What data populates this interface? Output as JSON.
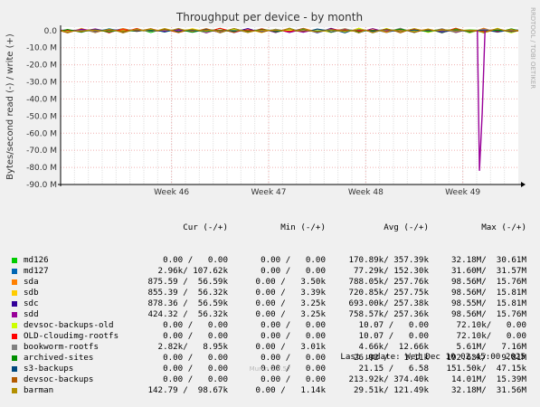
{
  "chart_data": {
    "type": "line",
    "title": "Throughput per device - by month",
    "ylabel": "Bytes/second read (-) / write (+)",
    "side_label": "RRDTOOL / TOBI OETIKER",
    "ylim": [
      -90000000,
      2000000
    ],
    "y_ticks": [
      "0.0",
      "-10.0 M",
      "-20.0 M",
      "-30.0 M",
      "-40.0 M",
      "-50.0 M",
      "-60.0 M",
      "-70.0 M",
      "-80.0 M",
      "-90.0 M"
    ],
    "y_tick_values": [
      0,
      -10000000,
      -20000000,
      -30000000,
      -40000000,
      -50000000,
      -60000000,
      -70000000,
      -80000000,
      -90000000
    ],
    "x_ticks": [
      "Week 46",
      "Week 47",
      "Week 48",
      "Week 49"
    ],
    "x_tick_days": [
      8,
      15,
      22,
      29
    ],
    "x_range_days": [
      0,
      33
    ],
    "grid": true,
    "spike": {
      "day": 30.2,
      "min": -82000000,
      "recover_day": 30.4,
      "recover_value": -48000000
    },
    "series_colors": [
      "#00cc00",
      "#0066b3",
      "#ff8000",
      "#ffcc00",
      "#330099",
      "#990099",
      "#ccff00",
      "#ff0000",
      "#808080",
      "#008f00",
      "#00487d",
      "#b35a00",
      "#b38f00"
    ]
  },
  "legend": {
    "headers": {
      "cur": "Cur (-/+)",
      "min": "Min (-/+)",
      "avg": "Avg (-/+)",
      "max": "Max (-/+)"
    },
    "rows": [
      {
        "name": "md126",
        "color": "#00cc00",
        "cur": "0.00 /   0.00",
        "min": "0.00 /   0.00",
        "avg": "170.89k/ 357.39k",
        "max": "32.18M/  30.61M"
      },
      {
        "name": "md127",
        "color": "#0066b3",
        "cur": "2.96k/ 107.62k",
        "min": "0.00 /   0.00",
        "avg": "77.29k/ 152.30k",
        "max": "31.60M/  31.57M"
      },
      {
        "name": "sda",
        "color": "#ff8000",
        "cur": "875.59 /  56.59k",
        "min": "0.00 /   3.50k",
        "avg": "788.05k/ 257.76k",
        "max": "98.56M/  15.76M"
      },
      {
        "name": "sdb",
        "color": "#ffcc00",
        "cur": "855.39 /  56.32k",
        "min": "0.00 /   3.39k",
        "avg": "720.85k/ 257.75k",
        "max": "98.56M/  15.81M"
      },
      {
        "name": "sdc",
        "color": "#330099",
        "cur": "878.36 /  56.59k",
        "min": "0.00 /   3.25k",
        "avg": "693.00k/ 257.38k",
        "max": "98.55M/  15.81M"
      },
      {
        "name": "sdd",
        "color": "#990099",
        "cur": "424.32 /  56.32k",
        "min": "0.00 /   3.25k",
        "avg": "758.57k/ 257.36k",
        "max": "98.56M/  15.76M"
      },
      {
        "name": "devsoc-backups-old",
        "color": "#ccff00",
        "cur": "0.00 /   0.00",
        "min": "0.00 /   0.00",
        "avg": "10.07 /   0.00",
        "max": "72.10k/   0.00"
      },
      {
        "name": "OLD-cloudimg-rootfs",
        "color": "#ff0000",
        "cur": "0.00 /   0.00",
        "min": "0.00 /   0.00",
        "avg": "10.07 /   0.00",
        "max": "72.10k/   0.00"
      },
      {
        "name": "bookworm-rootfs",
        "color": "#808080",
        "cur": "2.82k/   8.95k",
        "min": "0.00 /   3.01k",
        "avg": "4.66k/  12.66k",
        "max": "5.61M/   7.16M"
      },
      {
        "name": "archived-sites",
        "color": "#008f00",
        "cur": "0.00 /   0.00",
        "min": "0.00 /   0.00",
        "avg": "26.92 /   1.11k",
        "max": "192.63k/   9.81M"
      },
      {
        "name": "s3-backups",
        "color": "#00487d",
        "cur": "0.00 /   0.00",
        "min": "0.00 /   0.00",
        "avg": "21.15 /   6.58",
        "max": "151.50k/  47.15k"
      },
      {
        "name": "devsoc-backups",
        "color": "#b35a00",
        "cur": "0.00 /   0.00",
        "min": "0.00 /   0.00",
        "avg": "213.92k/ 374.40k",
        "max": "14.01M/  15.39M"
      },
      {
        "name": "barman",
        "color": "#b38f00",
        "cur": "142.79 /  98.67k",
        "min": "0.00 /   1.14k",
        "avg": "29.51k/ 121.49k",
        "max": "32.18M/  31.56M"
      }
    ]
  },
  "footer": {
    "last_update": "Last update: Wed Dec 10 02:45:00 2025",
    "munin": "Munin 2.0.57"
  }
}
